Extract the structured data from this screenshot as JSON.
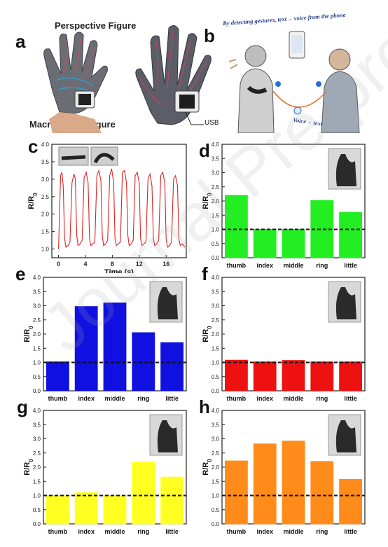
{
  "panel_labels": {
    "a": "a",
    "b": "b",
    "c": "c",
    "d": "d",
    "e": "e",
    "f": "f",
    "g": "g",
    "h": "h"
  },
  "panel_a": {
    "top_caption": "Perspective Figure",
    "bottom_caption": "Macroscopic Figure",
    "usb_label": "USB"
  },
  "panel_b": {
    "top_text": "By detecting gestures, text→ voice from the phone",
    "bottom_text": "Voice→ text on the phone"
  },
  "watermark": "Journal Pre-proof",
  "colors": {
    "green": "#22ee22",
    "blue": "#1010e0",
    "red": "#ee1111",
    "yellow": "#ffff22",
    "orange": "#ff8c1a",
    "line": "#dd2222"
  },
  "chart_data": [
    {
      "panel": "c",
      "type": "line",
      "xlabel": "Time (s)",
      "ylabel": "R/R0",
      "xlim": [
        -1,
        19
      ],
      "ylim": [
        0.75,
        4.0
      ],
      "xticks": [
        "0",
        "4",
        "8",
        "12",
        "16"
      ],
      "yticks": [
        "1.0",
        "1.5",
        "2.0",
        "2.5",
        "3.0",
        "3.5",
        "4.0"
      ],
      "series": [
        {
          "x": [
            0,
            0.3,
            0.5,
            0.7,
            0.9,
            1.1,
            1.4,
            1.7,
            2.0,
            2.3,
            2.5,
            2.7,
            2.9,
            3.2,
            3.5,
            3.8,
            4.1,
            4.4,
            4.6,
            4.8,
            5.1,
            5.4,
            5.7,
            6.0,
            6.3,
            6.5,
            6.7,
            7.0,
            7.3,
            7.6,
            7.9,
            8.2,
            8.4,
            8.6,
            8.9,
            9.2,
            9.5,
            9.8,
            10.1,
            10.3,
            10.5,
            10.8,
            11.1,
            11.4,
            11.7,
            12.0,
            12.2,
            12.4,
            12.7,
            13.0,
            13.3,
            13.6,
            13.9,
            14.1,
            14.3,
            14.6,
            14.9,
            15.2,
            15.5,
            15.8,
            16.0,
            16.2,
            16.5,
            16.8,
            17.1,
            17.4,
            17.7,
            17.9,
            18.1,
            18.4,
            18.8
          ],
          "y": [
            1.0,
            3.1,
            3.2,
            2.8,
            1.3,
            1.05,
            1.1,
            1.2,
            2.9,
            3.15,
            3.0,
            1.4,
            1.1,
            1.15,
            1.25,
            3.05,
            3.2,
            2.9,
            1.3,
            1.1,
            1.15,
            1.2,
            3.1,
            3.25,
            2.95,
            1.4,
            1.1,
            1.15,
            1.25,
            3.1,
            3.3,
            2.9,
            1.3,
            1.1,
            1.15,
            1.2,
            3.2,
            3.25,
            2.9,
            1.4,
            1.1,
            1.15,
            1.25,
            3.1,
            3.2,
            2.9,
            1.3,
            1.1,
            1.15,
            1.2,
            3.0,
            3.15,
            2.8,
            1.3,
            1.1,
            1.15,
            1.25,
            3.1,
            3.2,
            2.9,
            1.3,
            1.05,
            1.1,
            1.2,
            3.0,
            3.1,
            2.8,
            1.3,
            1.1,
            1.15,
            1.05
          ]
        }
      ]
    },
    {
      "panel": "d",
      "type": "bar",
      "ylabel": "R/R0",
      "ylim": [
        0,
        4.0
      ],
      "baseline": 1.0,
      "color": "#22ee22",
      "categories": [
        "thumb",
        "index",
        "middle",
        "ring",
        "little"
      ],
      "yticks": [
        "0.0",
        "0.5",
        "1.0",
        "1.5",
        "2.0",
        "2.5",
        "3.0",
        "3.5",
        "4.0"
      ],
      "values": [
        2.2,
        1.0,
        1.0,
        2.02,
        1.6
      ]
    },
    {
      "panel": "e",
      "type": "bar",
      "ylabel": "R/R0",
      "ylim": [
        0,
        4.0
      ],
      "baseline": 1.0,
      "color": "#1010e0",
      "categories": [
        "thumb",
        "index",
        "middle",
        "ring",
        "little"
      ],
      "yticks": [
        "0.0",
        "0.5",
        "1.0",
        "1.5",
        "2.0",
        "2.5",
        "3.0",
        "3.5",
        "4.0"
      ],
      "values": [
        1.02,
        2.97,
        3.1,
        2.05,
        1.7
      ]
    },
    {
      "panel": "f",
      "type": "bar",
      "ylabel": "R/R0",
      "ylim": [
        0,
        4.0
      ],
      "baseline": 1.0,
      "color": "#ee1111",
      "categories": [
        "thumb",
        "index",
        "middle",
        "ring",
        "little"
      ],
      "yticks": [
        "0.0",
        "0.5",
        "1.0",
        "1.5",
        "2.0",
        "2.5",
        "3.0",
        "3.5",
        "4.0"
      ],
      "values": [
        1.08,
        1.02,
        1.07,
        1.02,
        1.02
      ]
    },
    {
      "panel": "g",
      "type": "bar",
      "ylabel": "R/R0",
      "ylim": [
        0,
        4.0
      ],
      "baseline": 1.0,
      "color": "#ffff22",
      "categories": [
        "thumb",
        "index",
        "middle",
        "ring",
        "little"
      ],
      "yticks": [
        "0.0",
        "0.5",
        "1.0",
        "1.5",
        "2.0",
        "2.5",
        "3.0",
        "3.5",
        "4.0"
      ],
      "values": [
        1.0,
        1.1,
        1.0,
        2.17,
        1.65
      ]
    },
    {
      "panel": "h",
      "type": "bar",
      "ylabel": "R/R0",
      "ylim": [
        0,
        4.0
      ],
      "baseline": 1.0,
      "color": "#ff8c1a",
      "categories": [
        "thumb",
        "index",
        "middle",
        "ring",
        "little"
      ],
      "yticks": [
        "0.0",
        "0.5",
        "1.0",
        "1.5",
        "2.0",
        "2.5",
        "3.0",
        "3.5",
        "4.0"
      ],
      "values": [
        2.22,
        2.82,
        2.92,
        2.2,
        1.57
      ]
    }
  ]
}
